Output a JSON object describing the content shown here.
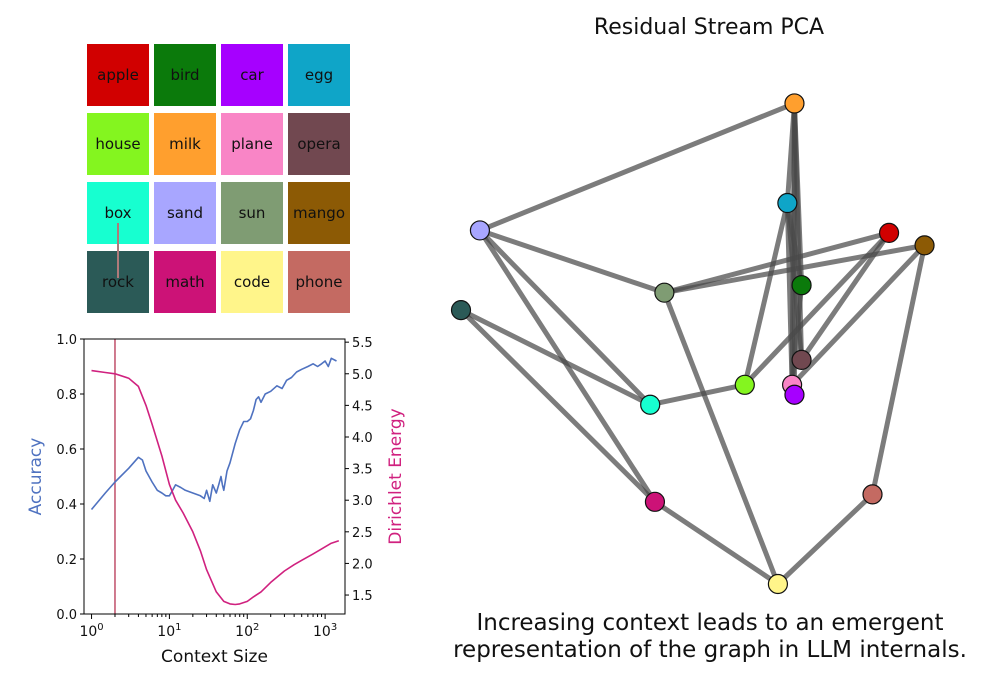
{
  "grid": {
    "rows": [
      [
        {
          "word": "apple",
          "color": "#d10000"
        },
        {
          "word": "bird",
          "color": "#0b7a0b"
        },
        {
          "word": "car",
          "color": "#a600ff"
        },
        {
          "word": "egg",
          "color": "#0fa5c8"
        }
      ],
      [
        {
          "word": "house",
          "color": "#84f51f"
        },
        {
          "word": "milk",
          "color": "#ff9f2e"
        },
        {
          "word": "plane",
          "color": "#f985c6"
        },
        {
          "word": "opera",
          "color": "#714850"
        }
      ],
      [
        {
          "word": "box",
          "color": "#17ffd0"
        },
        {
          "word": "sand",
          "color": "#a8a6ff"
        },
        {
          "word": "sun",
          "color": "#7f9c73"
        },
        {
          "word": "mango",
          "color": "#8c5a05"
        }
      ],
      [
        {
          "word": "rock",
          "color": "#2b5a57"
        },
        {
          "word": "math",
          "color": "#cc1277"
        },
        {
          "word": "code",
          "color": "#fff58a"
        },
        {
          "word": "phone",
          "color": "#c46a62"
        }
      ]
    ],
    "trace": [
      "box",
      "rock"
    ]
  },
  "chart_data": [
    {
      "type": "line",
      "xlabel": "Context Size",
      "ylabel": "Accuracy",
      "ylabel_right": "Dirichlet Energy",
      "xscale": "log",
      "xlim": [
        0.8,
        1800
      ],
      "ylim": [
        0,
        1
      ],
      "ylim_right": [
        1.2,
        5.55
      ],
      "xticks": [
        {
          "v": 1,
          "base": "10",
          "exp": "0"
        },
        {
          "v": 10,
          "base": "10",
          "exp": "1"
        },
        {
          "v": 100,
          "base": "10",
          "exp": "2"
        },
        {
          "v": 1000,
          "base": "10",
          "exp": "3"
        }
      ],
      "yticks": [
        "0.0",
        "0.2",
        "0.4",
        "0.6",
        "0.8",
        "1.0"
      ],
      "yticks_right": [
        "1.5",
        "2.0",
        "2.5",
        "3.0",
        "3.5",
        "4.0",
        "4.5",
        "5.0",
        "5.5"
      ],
      "marker_x": 2,
      "marker_color": "#c0506a",
      "series": [
        {
          "name": "Accuracy",
          "axis": "left",
          "color": "#4f72c0",
          "x": [
            1,
            1.5,
            2,
            3,
            4,
            4.5,
            5,
            6,
            7,
            8,
            9,
            10,
            11,
            12,
            14,
            16,
            20,
            25,
            28,
            30,
            33,
            36,
            40,
            43,
            46,
            48,
            50,
            55,
            60,
            70,
            80,
            90,
            100,
            110,
            120,
            130,
            140,
            150,
            170,
            200,
            240,
            280,
            320,
            370,
            430,
            500,
            600,
            700,
            800,
            900,
            1000,
            1100,
            1200,
            1400
          ],
          "y": [
            0.38,
            0.44,
            0.48,
            0.53,
            0.57,
            0.56,
            0.52,
            0.48,
            0.45,
            0.44,
            0.43,
            0.43,
            0.45,
            0.47,
            0.46,
            0.45,
            0.44,
            0.43,
            0.42,
            0.45,
            0.41,
            0.47,
            0.44,
            0.47,
            0.5,
            0.47,
            0.45,
            0.52,
            0.55,
            0.62,
            0.67,
            0.7,
            0.7,
            0.71,
            0.74,
            0.78,
            0.79,
            0.77,
            0.8,
            0.81,
            0.83,
            0.82,
            0.85,
            0.86,
            0.88,
            0.89,
            0.9,
            0.91,
            0.9,
            0.91,
            0.92,
            0.9,
            0.93,
            0.92
          ]
        },
        {
          "name": "Dirichlet Energy",
          "axis": "right",
          "color": "#d0217f",
          "x": [
            1,
            1.5,
            2,
            3,
            4,
            5,
            6,
            8,
            10,
            12,
            15,
            20,
            25,
            30,
            40,
            50,
            60,
            70,
            80,
            100,
            120,
            150,
            200,
            250,
            300,
            400,
            500,
            700,
            900,
            1200,
            1500
          ],
          "y": [
            5.05,
            5.02,
            5.0,
            4.93,
            4.8,
            4.5,
            4.2,
            3.7,
            3.25,
            3.0,
            2.8,
            2.5,
            2.2,
            1.9,
            1.55,
            1.4,
            1.36,
            1.35,
            1.36,
            1.4,
            1.47,
            1.55,
            1.7,
            1.8,
            1.88,
            1.98,
            2.05,
            2.15,
            2.23,
            2.32,
            2.36
          ]
        }
      ]
    },
    {
      "type": "scatter",
      "title": "Residual Stream PCA",
      "nodes": [
        {
          "word": "milk",
          "x": 0.705,
          "y": 0.965
        },
        {
          "word": "egg",
          "x": 0.69,
          "y": 0.765
        },
        {
          "word": "apple",
          "x": 0.905,
          "y": 0.705
        },
        {
          "word": "mango",
          "x": 0.98,
          "y": 0.68
        },
        {
          "word": "sand",
          "x": 0.04,
          "y": 0.71
        },
        {
          "word": "bird",
          "x": 0.72,
          "y": 0.6
        },
        {
          "word": "sun",
          "x": 0.43,
          "y": 0.585
        },
        {
          "word": "rock",
          "x": 0.0,
          "y": 0.55
        },
        {
          "word": "opera",
          "x": 0.72,
          "y": 0.45
        },
        {
          "word": "house",
          "x": 0.6,
          "y": 0.4
        },
        {
          "word": "plane",
          "x": 0.7,
          "y": 0.4
        },
        {
          "word": "car",
          "x": 0.705,
          "y": 0.38
        },
        {
          "word": "box",
          "x": 0.4,
          "y": 0.36
        },
        {
          "word": "math",
          "x": 0.41,
          "y": 0.165
        },
        {
          "word": "phone",
          "x": 0.87,
          "y": 0.18
        },
        {
          "word": "code",
          "x": 0.67,
          "y": 0.0
        }
      ],
      "edges": [
        [
          "sand",
          "milk"
        ],
        [
          "milk",
          "egg"
        ],
        [
          "milk",
          "bird"
        ],
        [
          "milk",
          "opera"
        ],
        [
          "milk",
          "car"
        ],
        [
          "milk",
          "plane"
        ],
        [
          "egg",
          "house"
        ],
        [
          "egg",
          "bird"
        ],
        [
          "egg",
          "opera"
        ],
        [
          "egg",
          "plane"
        ],
        [
          "sand",
          "sun"
        ],
        [
          "sand",
          "box"
        ],
        [
          "sand",
          "math"
        ],
        [
          "sun",
          "apple"
        ],
        [
          "sun",
          "mango"
        ],
        [
          "sun",
          "code"
        ],
        [
          "rock",
          "box"
        ],
        [
          "rock",
          "math"
        ],
        [
          "box",
          "house"
        ],
        [
          "house",
          "apple"
        ],
        [
          "apple",
          "opera"
        ],
        [
          "mango",
          "plane"
        ],
        [
          "mango",
          "phone"
        ],
        [
          "phone",
          "code"
        ],
        [
          "math",
          "code"
        ],
        [
          "bird",
          "plane"
        ]
      ]
    }
  ],
  "caption": {
    "line1": "Increasing context leads to an emergent",
    "line2": "representation of the graph in LLM internals."
  }
}
